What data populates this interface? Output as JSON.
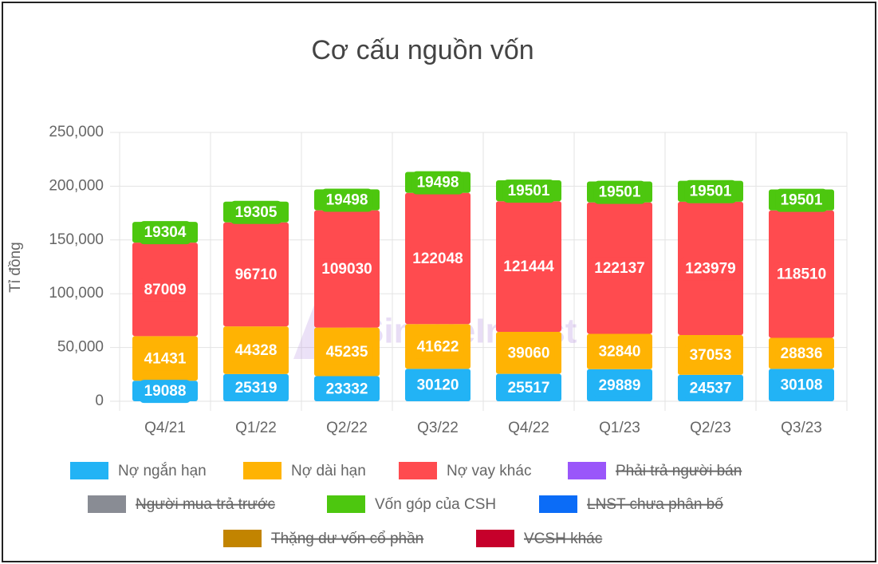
{
  "chart_data": {
    "type": "stacked_bar",
    "title": "Cơ cấu nguồn vốn",
    "y_label": "Tỉ đồng",
    "watermark": "SimpleInvest",
    "categories": [
      "Q4/21",
      "Q1/22",
      "Q2/22",
      "Q3/22",
      "Q4/22",
      "Q1/23",
      "Q2/23",
      "Q3/23"
    ],
    "series": [
      {
        "name": "Nợ ngắn hạn",
        "color": "#22b3f5",
        "values": [
          19088,
          25319,
          23332,
          30120,
          25517,
          29889,
          24537,
          30108
        ]
      },
      {
        "name": "Nợ dài hạn",
        "color": "#ffb303",
        "values": [
          41431,
          44328,
          45235,
          41622,
          39060,
          32840,
          37053,
          28836
        ]
      },
      {
        "name": "Nợ vay khác",
        "color": "#ff4b4f",
        "values": [
          87009,
          96710,
          109030,
          122048,
          121444,
          122137,
          123979,
          118510
        ]
      },
      {
        "name": "Phải trả người bán",
        "color": "#9a56fa",
        "hidden": true,
        "values": [
          null,
          null,
          null,
          null,
          null,
          null,
          null,
          null
        ]
      },
      {
        "name": "Người mua trả trước",
        "color": "#898c94",
        "hidden": true,
        "values": [
          null,
          null,
          null,
          null,
          null,
          null,
          null,
          null
        ]
      },
      {
        "name": "Vốn góp của CSH",
        "color": "#4dc70f",
        "values": [
          19304,
          19305,
          19498,
          19498,
          19501,
          19501,
          19501,
          19501
        ]
      },
      {
        "name": "LNST chưa phân bố",
        "color": "#0b6cf7",
        "hidden": true,
        "values": [
          null,
          null,
          null,
          null,
          null,
          null,
          null,
          null
        ]
      },
      {
        "name": "Thặng dư vốn cổ phần",
        "color": "#c28400",
        "hidden": true,
        "values": [
          null,
          null,
          null,
          null,
          null,
          null,
          null,
          null
        ]
      },
      {
        "name": "VCSH khác",
        "color": "#c6002b",
        "hidden": true,
        "values": [
          null,
          null,
          null,
          null,
          null,
          null,
          null,
          null
        ]
      }
    ],
    "ylim": [
      0,
      250000
    ],
    "yticks": [
      {
        "value": 0,
        "label": "0"
      },
      {
        "value": 50000,
        "label": "50,000"
      },
      {
        "value": 100000,
        "label": "100,000"
      },
      {
        "value": 150000,
        "label": "150,000"
      },
      {
        "value": 200000,
        "label": "200,000"
      },
      {
        "value": 250000,
        "label": "250,000"
      }
    ],
    "grid": true
  }
}
